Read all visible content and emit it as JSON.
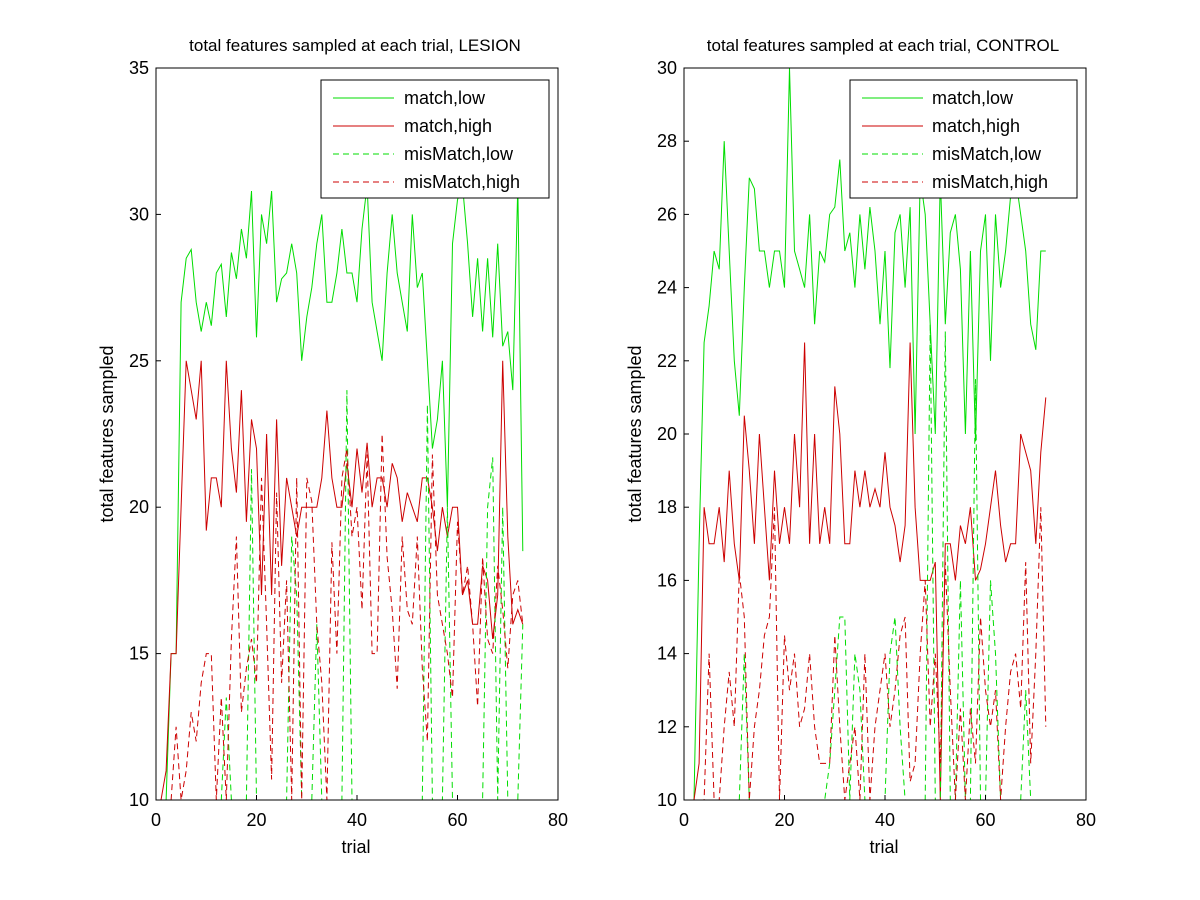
{
  "figure": {
    "background": "#ffffff",
    "axis_color": "#000000"
  },
  "legend": {
    "entries": [
      {
        "label": "match,low",
        "color": "#00dd00",
        "dash": "solid"
      },
      {
        "label": "match,high",
        "color": "#cc0000",
        "dash": "solid"
      },
      {
        "label": "misMatch,low",
        "color": "#00dd00",
        "dash": "dashed"
      },
      {
        "label": "misMatch,high",
        "color": "#cc0000",
        "dash": "dashed"
      }
    ],
    "placement": "top-right"
  },
  "chart_data": [
    {
      "type": "line",
      "title": "total features sampled at each trial, LESION",
      "xlabel": "trial",
      "ylabel": "total features sampled",
      "xlim": [
        0,
        80
      ],
      "ylim": [
        10,
        35
      ],
      "xticks": [
        0,
        20,
        40,
        60,
        80
      ],
      "yticks": [
        10,
        15,
        20,
        25,
        30,
        35
      ],
      "grid": false,
      "series": [
        {
          "name": "match,low",
          "color": "#00dd00",
          "dash": "solid",
          "y": [
            10,
            10,
            15,
            15,
            27,
            28.5,
            28.8,
            27,
            26,
            27,
            26.2,
            28,
            28.3,
            26.5,
            28.7,
            27.8,
            29.5,
            28.5,
            30.8,
            25.8,
            30,
            29,
            30.8,
            27,
            27.8,
            28,
            29,
            28,
            25,
            26.5,
            27.5,
            29,
            30,
            27,
            27,
            28,
            29.5,
            28,
            28,
            27,
            29.5,
            31,
            27,
            26,
            25,
            28,
            30,
            28,
            27,
            26,
            30,
            27.5,
            28,
            25,
            22,
            23,
            25,
            20,
            29,
            30.5,
            31,
            29,
            26.5,
            28.5,
            26,
            28.5,
            25.8,
            29,
            25.5,
            26,
            24,
            31,
            18.5
          ]
        },
        {
          "name": "match,high",
          "color": "#cc0000",
          "dash": "solid",
          "y": [
            10,
            11,
            15,
            15,
            20,
            25,
            24,
            23,
            25,
            19.2,
            21,
            21,
            20,
            25,
            22,
            20.5,
            24,
            19.5,
            23,
            22,
            17,
            22.5,
            17,
            23,
            18,
            21,
            20,
            19,
            20,
            20,
            20,
            20,
            21,
            23.3,
            21,
            20,
            20,
            21.5,
            20,
            22,
            20.5,
            22.2,
            20,
            21,
            21,
            20,
            21.5,
            21,
            19.5,
            20.5,
            20,
            19.5,
            21,
            21,
            20,
            18.5,
            20,
            19,
            20,
            20,
            17,
            17.5,
            16,
            16,
            18,
            17.5,
            15.5,
            17,
            25,
            19,
            16,
            16.5,
            16
          ]
        },
        {
          "name": "misMatch,low",
          "color": "#00dd00",
          "dash": "dashed",
          "y": [
            10,
            10,
            10,
            10,
            10,
            10,
            10,
            10,
            10,
            10,
            10,
            10,
            10,
            13.5,
            10,
            10,
            10,
            10,
            21.3,
            10,
            10,
            10,
            10,
            10,
            10,
            10,
            19,
            17,
            10,
            10,
            10,
            16,
            10,
            10,
            10,
            10,
            10,
            24,
            10,
            10,
            10,
            10,
            10,
            10,
            10,
            10,
            10,
            10,
            10,
            10,
            10,
            10,
            10,
            23.5,
            10,
            10,
            10,
            20,
            10,
            10,
            10,
            10,
            10,
            10,
            10,
            20,
            21.7,
            10,
            20,
            10,
            10,
            10,
            16
          ]
        },
        {
          "name": "misMatch,high",
          "color": "#cc0000",
          "dash": "dashed",
          "y": [
            10,
            10,
            10,
            12.5,
            10,
            11,
            13,
            12,
            14,
            15,
            15,
            10,
            13.5,
            10,
            15.5,
            19,
            13,
            14.5,
            15.5,
            14,
            21,
            16,
            10.7,
            20.5,
            14,
            17.5,
            10,
            21,
            10,
            21,
            20.2,
            16,
            14,
            10,
            18.8,
            15,
            21,
            22,
            19,
            20,
            16.5,
            21.8,
            15,
            15,
            22.5,
            18.3,
            16.5,
            13.8,
            19,
            16.5,
            16,
            19,
            14.5,
            12,
            21.8,
            17,
            16,
            15,
            13.5,
            19.5,
            17,
            18,
            16,
            13.2,
            18.3,
            15.5,
            15,
            18,
            16.5,
            14.5,
            17,
            17.5,
            16
          ]
        }
      ]
    },
    {
      "type": "line",
      "title": "total features sampled at each trial, CONTROL",
      "xlabel": "trial",
      "ylabel": "total features sampled",
      "xlim": [
        0,
        80
      ],
      "ylim": [
        10,
        30
      ],
      "xticks": [
        0,
        20,
        40,
        60,
        80
      ],
      "yticks": [
        10,
        12,
        14,
        16,
        18,
        20,
        22,
        24,
        26,
        28,
        30
      ],
      "grid": false,
      "series": [
        {
          "name": "match,low",
          "color": "#00dd00",
          "dash": "solid",
          "y": [
            10,
            10,
            17,
            22.5,
            23.5,
            25,
            24.5,
            28,
            25,
            22,
            20.5,
            24,
            27,
            26.7,
            25,
            25,
            24,
            25,
            25,
            24,
            30,
            25,
            24.5,
            24,
            26,
            23,
            25,
            24.7,
            26,
            26.2,
            27.5,
            25,
            25.5,
            24,
            26,
            24.5,
            26.2,
            25,
            23,
            25,
            21.8,
            25.5,
            26,
            24,
            26.2,
            20,
            27,
            26,
            23,
            20,
            27,
            23,
            25.5,
            26,
            24.5,
            20,
            25,
            19.8,
            25,
            26,
            22,
            26,
            24,
            25,
            26.5,
            27,
            26,
            25,
            23,
            22.3,
            25,
            25
          ]
        },
        {
          "name": "match,high",
          "color": "#cc0000",
          "dash": "solid",
          "y": [
            10,
            10,
            11,
            18,
            17,
            17,
            18,
            16.5,
            19,
            17,
            16,
            20.5,
            19,
            17,
            20,
            18,
            16,
            19,
            17,
            18,
            17,
            20,
            18,
            22.5,
            17,
            20,
            17,
            18,
            17,
            21.3,
            20,
            17,
            17,
            19,
            18,
            19,
            18,
            18.5,
            18,
            19.5,
            18,
            17.5,
            16.5,
            17.5,
            22.5,
            18,
            16,
            16,
            16,
            16.5,
            10,
            17,
            17,
            16,
            17.5,
            17,
            18,
            16,
            16.3,
            17,
            18,
            19,
            17.5,
            16.5,
            17,
            17,
            20,
            19.5,
            19,
            17,
            19.5,
            21
          ]
        },
        {
          "name": "misMatch,low",
          "color": "#00dd00",
          "dash": "dashed",
          "y": [
            10,
            10,
            10,
            10,
            10,
            10,
            10,
            10,
            10,
            10,
            10,
            14,
            10,
            10,
            10,
            10,
            10,
            10,
            10,
            10,
            10,
            10,
            10,
            10,
            10,
            10,
            10,
            10,
            11,
            13,
            15,
            15,
            10,
            14,
            13,
            10,
            10,
            10,
            10,
            10,
            14,
            15,
            12,
            10,
            10,
            10,
            10,
            10,
            23,
            10,
            10,
            22.8,
            10,
            10,
            16,
            10,
            10,
            21.5,
            10,
            10,
            16,
            14,
            10,
            10,
            10,
            10,
            10,
            13,
            10,
            10,
            10,
            10
          ]
        },
        {
          "name": "misMatch,high",
          "color": "#cc0000",
          "dash": "dashed",
          "y": [
            10,
            10,
            10,
            10,
            14,
            10,
            10,
            12,
            13.5,
            12,
            16.2,
            15,
            10,
            12,
            13,
            14.5,
            15,
            18,
            10,
            14.5,
            13,
            14,
            12,
            12.5,
            14,
            12,
            11,
            11,
            11,
            14.5,
            12,
            10,
            11,
            12,
            10,
            14,
            10,
            12,
            13,
            14,
            12,
            13,
            14.5,
            15,
            10.5,
            11,
            14,
            16,
            12,
            14,
            11,
            16.5,
            13,
            10,
            12.5,
            10,
            12.5,
            11,
            15,
            13,
            12,
            13,
            10,
            12,
            13.5,
            14,
            12.5,
            16.5,
            11,
            14,
            18,
            12
          ]
        }
      ]
    }
  ]
}
